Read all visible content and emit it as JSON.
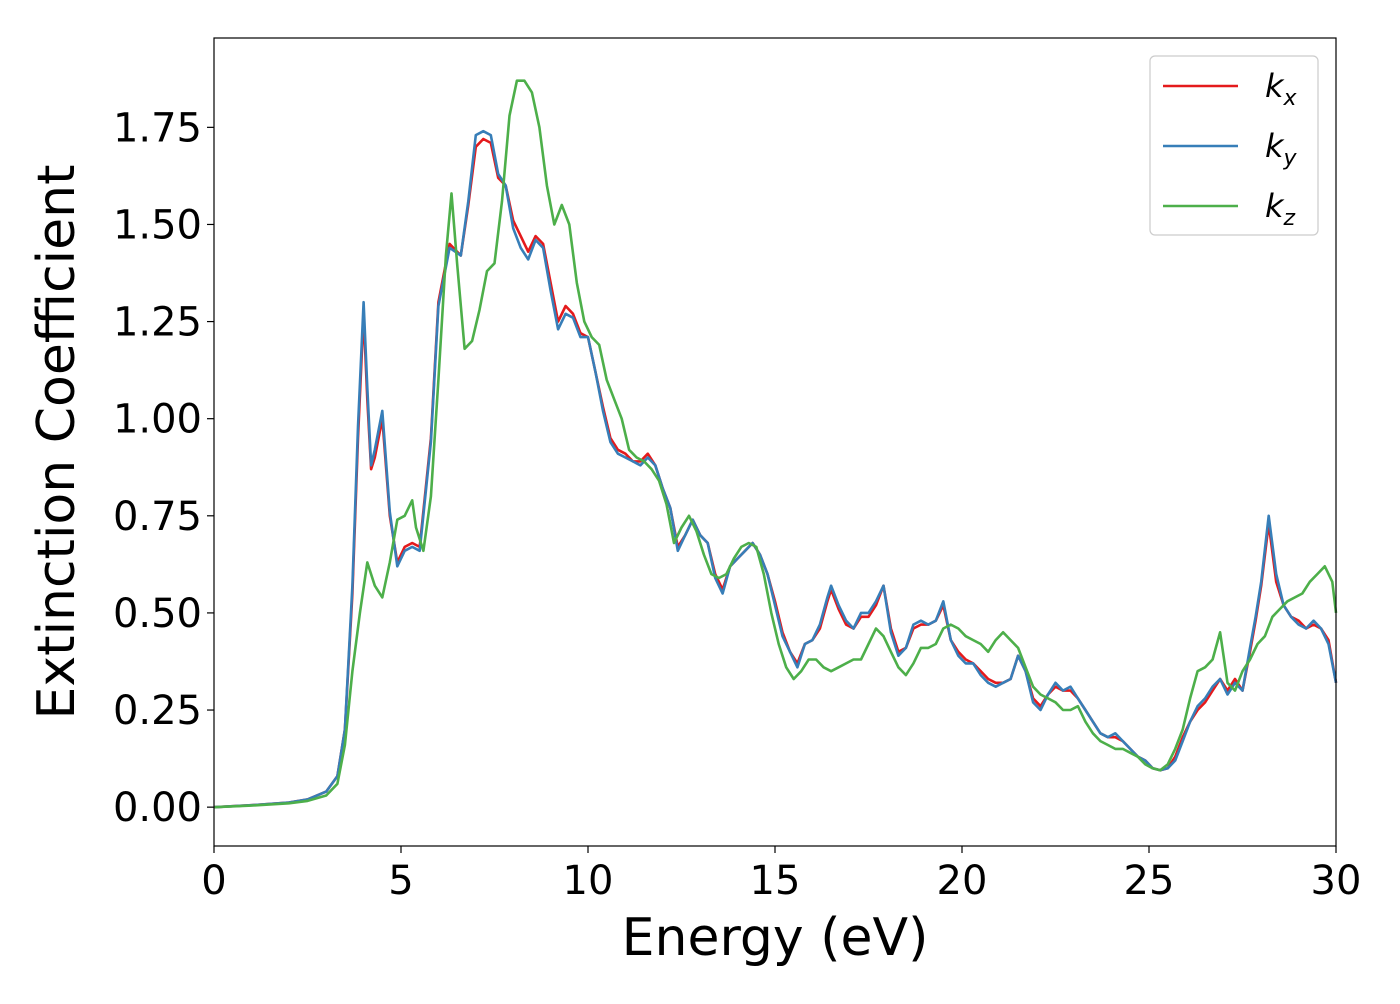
{
  "chart_data": {
    "type": "line",
    "xlabel": "Energy (eV)",
    "ylabel": "Extinction Coefficient",
    "xlim": [
      0,
      30
    ],
    "ylim": [
      -0.1,
      1.98
    ],
    "xticks": [
      0,
      5,
      10,
      15,
      20,
      25,
      30
    ],
    "xtick_labels": [
      "0",
      "5",
      "10",
      "15",
      "20",
      "25",
      "30"
    ],
    "yticks": [
      0,
      0.25,
      0.5,
      0.75,
      1.0,
      1.25,
      1.5,
      1.75
    ],
    "ytick_labels": [
      "0.00",
      "0.25",
      "0.50",
      "0.75",
      "1.00",
      "1.25",
      "1.50",
      "1.75"
    ],
    "grid": false,
    "legend_position": "top-right",
    "series": [
      {
        "name": "k_x",
        "label_base": "k",
        "label_sub": "x",
        "color": "#e41a1c",
        "x": [
          0,
          1,
          2,
          2.5,
          3,
          3.3,
          3.5,
          3.7,
          3.85,
          4.0,
          4.1,
          4.2,
          4.3,
          4.5,
          4.7,
          4.9,
          5.1,
          5.3,
          5.5,
          5.8,
          6.0,
          6.3,
          6.6,
          6.8,
          7.0,
          7.2,
          7.4,
          7.6,
          7.8,
          8.0,
          8.2,
          8.4,
          8.6,
          8.8,
          9.0,
          9.2,
          9.4,
          9.6,
          9.8,
          10.0,
          10.2,
          10.4,
          10.6,
          10.8,
          11.0,
          11.2,
          11.4,
          11.6,
          11.8,
          12.0,
          12.2,
          12.4,
          12.6,
          12.8,
          13.0,
          13.2,
          13.4,
          13.6,
          13.8,
          14.0,
          14.2,
          14.4,
          14.6,
          14.8,
          15.0,
          15.2,
          15.4,
          15.6,
          15.8,
          16.0,
          16.2,
          16.4,
          16.5,
          16.7,
          16.9,
          17.1,
          17.3,
          17.5,
          17.7,
          17.9,
          18.1,
          18.3,
          18.5,
          18.7,
          18.9,
          19.1,
          19.3,
          19.5,
          19.7,
          19.9,
          20.1,
          20.3,
          20.5,
          20.7,
          20.9,
          21.1,
          21.3,
          21.5,
          21.7,
          21.9,
          22.1,
          22.3,
          22.5,
          22.7,
          22.9,
          23.1,
          23.3,
          23.5,
          23.7,
          23.9,
          24.1,
          24.3,
          24.5,
          24.7,
          24.9,
          25.1,
          25.3,
          25.5,
          25.7,
          25.9,
          26.1,
          26.3,
          26.5,
          26.7,
          26.9,
          27.1,
          27.3,
          27.5,
          27.7,
          27.85,
          28.0,
          28.2,
          28.4,
          28.6,
          28.8,
          29.0,
          29.2,
          29.4,
          29.6,
          29.8,
          30.0
        ],
        "y": [
          0.0,
          0.005,
          0.012,
          0.02,
          0.04,
          0.08,
          0.2,
          0.55,
          0.95,
          1.27,
          1.05,
          0.87,
          0.9,
          1.0,
          0.75,
          0.63,
          0.67,
          0.68,
          0.67,
          0.95,
          1.3,
          1.45,
          1.42,
          1.55,
          1.7,
          1.72,
          1.71,
          1.62,
          1.6,
          1.51,
          1.47,
          1.43,
          1.47,
          1.45,
          1.35,
          1.25,
          1.29,
          1.27,
          1.22,
          1.21,
          1.12,
          1.03,
          0.95,
          0.92,
          0.91,
          0.89,
          0.89,
          0.91,
          0.88,
          0.82,
          0.77,
          0.67,
          0.7,
          0.74,
          0.7,
          0.68,
          0.6,
          0.56,
          0.62,
          0.64,
          0.66,
          0.68,
          0.65,
          0.6,
          0.53,
          0.45,
          0.4,
          0.37,
          0.42,
          0.43,
          0.46,
          0.53,
          0.56,
          0.51,
          0.47,
          0.46,
          0.49,
          0.49,
          0.52,
          0.57,
          0.46,
          0.4,
          0.41,
          0.46,
          0.47,
          0.47,
          0.48,
          0.52,
          0.43,
          0.4,
          0.38,
          0.37,
          0.35,
          0.33,
          0.32,
          0.32,
          0.33,
          0.39,
          0.35,
          0.28,
          0.26,
          0.29,
          0.31,
          0.3,
          0.3,
          0.28,
          0.25,
          0.22,
          0.19,
          0.18,
          0.18,
          0.17,
          0.15,
          0.13,
          0.12,
          0.1,
          0.095,
          0.1,
          0.13,
          0.18,
          0.22,
          0.25,
          0.27,
          0.3,
          0.33,
          0.3,
          0.33,
          0.3,
          0.4,
          0.48,
          0.57,
          0.73,
          0.58,
          0.52,
          0.49,
          0.48,
          0.46,
          0.47,
          0.46,
          0.43,
          0.32
        ]
      },
      {
        "name": "k_y",
        "label_base": "k",
        "label_sub": "y",
        "color": "#377eb8",
        "x": [
          0,
          1,
          2,
          2.5,
          3,
          3.3,
          3.5,
          3.7,
          3.85,
          4.0,
          4.1,
          4.2,
          4.3,
          4.5,
          4.7,
          4.9,
          5.1,
          5.3,
          5.5,
          5.8,
          6.0,
          6.3,
          6.6,
          6.8,
          7.0,
          7.2,
          7.4,
          7.6,
          7.8,
          8.0,
          8.2,
          8.4,
          8.6,
          8.8,
          9.0,
          9.2,
          9.4,
          9.6,
          9.8,
          10.0,
          10.2,
          10.4,
          10.6,
          10.8,
          11.0,
          11.2,
          11.4,
          11.6,
          11.8,
          12.0,
          12.2,
          12.4,
          12.6,
          12.8,
          13.0,
          13.2,
          13.4,
          13.6,
          13.8,
          14.0,
          14.2,
          14.4,
          14.6,
          14.8,
          15.0,
          15.2,
          15.4,
          15.6,
          15.8,
          16.0,
          16.2,
          16.4,
          16.5,
          16.7,
          16.9,
          17.1,
          17.3,
          17.5,
          17.7,
          17.9,
          18.1,
          18.3,
          18.5,
          18.7,
          18.9,
          19.1,
          19.3,
          19.5,
          19.7,
          19.9,
          20.1,
          20.3,
          20.5,
          20.7,
          20.9,
          21.1,
          21.3,
          21.5,
          21.7,
          21.9,
          22.1,
          22.3,
          22.5,
          22.7,
          22.9,
          23.1,
          23.3,
          23.5,
          23.7,
          23.9,
          24.1,
          24.3,
          24.5,
          24.7,
          24.9,
          25.1,
          25.3,
          25.5,
          25.7,
          25.9,
          26.1,
          26.3,
          26.5,
          26.7,
          26.9,
          27.1,
          27.3,
          27.5,
          27.7,
          27.85,
          28.0,
          28.2,
          28.4,
          28.6,
          28.8,
          29.0,
          29.2,
          29.4,
          29.6,
          29.8,
          30.0
        ],
        "y": [
          0.0,
          0.005,
          0.012,
          0.02,
          0.04,
          0.08,
          0.2,
          0.57,
          0.98,
          1.3,
          1.08,
          0.88,
          0.92,
          1.02,
          0.76,
          0.62,
          0.66,
          0.67,
          0.66,
          0.94,
          1.29,
          1.44,
          1.42,
          1.56,
          1.73,
          1.74,
          1.73,
          1.63,
          1.6,
          1.49,
          1.44,
          1.41,
          1.46,
          1.44,
          1.33,
          1.23,
          1.27,
          1.26,
          1.21,
          1.21,
          1.12,
          1.02,
          0.94,
          0.91,
          0.9,
          0.89,
          0.88,
          0.9,
          0.88,
          0.82,
          0.77,
          0.66,
          0.7,
          0.74,
          0.7,
          0.68,
          0.59,
          0.55,
          0.62,
          0.64,
          0.66,
          0.68,
          0.65,
          0.6,
          0.52,
          0.44,
          0.4,
          0.36,
          0.42,
          0.43,
          0.47,
          0.54,
          0.57,
          0.52,
          0.48,
          0.46,
          0.5,
          0.5,
          0.53,
          0.57,
          0.45,
          0.39,
          0.41,
          0.47,
          0.48,
          0.47,
          0.48,
          0.53,
          0.43,
          0.39,
          0.37,
          0.37,
          0.34,
          0.32,
          0.31,
          0.32,
          0.33,
          0.39,
          0.35,
          0.27,
          0.25,
          0.29,
          0.32,
          0.3,
          0.31,
          0.28,
          0.25,
          0.22,
          0.19,
          0.18,
          0.19,
          0.17,
          0.15,
          0.13,
          0.12,
          0.1,
          0.095,
          0.1,
          0.12,
          0.17,
          0.22,
          0.26,
          0.28,
          0.31,
          0.33,
          0.29,
          0.32,
          0.3,
          0.41,
          0.49,
          0.58,
          0.75,
          0.6,
          0.52,
          0.49,
          0.47,
          0.46,
          0.48,
          0.46,
          0.42,
          0.32
        ]
      },
      {
        "name": "k_z",
        "label_base": "k",
        "label_sub": "z",
        "color": "#4daf4a",
        "x": [
          0,
          1,
          2,
          2.5,
          3,
          3.3,
          3.5,
          3.7,
          3.9,
          4.1,
          4.3,
          4.5,
          4.7,
          4.9,
          5.1,
          5.3,
          5.4,
          5.6,
          5.8,
          6.0,
          6.2,
          6.35,
          6.5,
          6.7,
          6.9,
          7.1,
          7.3,
          7.5,
          7.7,
          7.9,
          8.1,
          8.3,
          8.5,
          8.7,
          8.9,
          9.1,
          9.3,
          9.5,
          9.7,
          9.9,
          10.1,
          10.3,
          10.5,
          10.7,
          10.9,
          11.1,
          11.3,
          11.5,
          11.7,
          11.9,
          12.1,
          12.3,
          12.5,
          12.7,
          12.9,
          13.1,
          13.3,
          13.5,
          13.7,
          13.9,
          14.1,
          14.3,
          14.5,
          14.7,
          14.9,
          15.1,
          15.3,
          15.5,
          15.7,
          15.9,
          16.1,
          16.3,
          16.5,
          16.7,
          16.9,
          17.1,
          17.3,
          17.5,
          17.7,
          17.9,
          18.1,
          18.3,
          18.5,
          18.7,
          18.9,
          19.1,
          19.3,
          19.5,
          19.7,
          19.9,
          20.1,
          20.3,
          20.5,
          20.7,
          20.9,
          21.1,
          21.3,
          21.5,
          21.7,
          21.9,
          22.1,
          22.3,
          22.5,
          22.7,
          22.9,
          23.1,
          23.3,
          23.5,
          23.7,
          23.9,
          24.1,
          24.3,
          24.5,
          24.7,
          24.9,
          25.1,
          25.3,
          25.5,
          25.7,
          25.9,
          26.1,
          26.3,
          26.5,
          26.7,
          26.9,
          27.1,
          27.3,
          27.5,
          27.7,
          27.9,
          28.1,
          28.3,
          28.5,
          28.7,
          28.9,
          29.1,
          29.3,
          29.5,
          29.7,
          29.9,
          30.0
        ],
        "y": [
          0.0,
          0.004,
          0.01,
          0.016,
          0.03,
          0.06,
          0.16,
          0.35,
          0.5,
          0.63,
          0.57,
          0.54,
          0.63,
          0.74,
          0.75,
          0.79,
          0.72,
          0.66,
          0.8,
          1.1,
          1.42,
          1.58,
          1.4,
          1.18,
          1.2,
          1.28,
          1.38,
          1.4,
          1.56,
          1.78,
          1.87,
          1.87,
          1.84,
          1.75,
          1.6,
          1.5,
          1.55,
          1.5,
          1.35,
          1.25,
          1.21,
          1.19,
          1.1,
          1.05,
          1.0,
          0.92,
          0.9,
          0.89,
          0.87,
          0.84,
          0.78,
          0.68,
          0.72,
          0.75,
          0.71,
          0.65,
          0.6,
          0.59,
          0.6,
          0.64,
          0.67,
          0.68,
          0.67,
          0.6,
          0.5,
          0.42,
          0.36,
          0.33,
          0.35,
          0.38,
          0.38,
          0.36,
          0.35,
          0.36,
          0.37,
          0.38,
          0.38,
          0.42,
          0.46,
          0.44,
          0.4,
          0.36,
          0.34,
          0.37,
          0.41,
          0.41,
          0.42,
          0.46,
          0.47,
          0.46,
          0.44,
          0.43,
          0.42,
          0.4,
          0.43,
          0.45,
          0.43,
          0.41,
          0.36,
          0.31,
          0.29,
          0.28,
          0.27,
          0.25,
          0.25,
          0.26,
          0.22,
          0.19,
          0.17,
          0.16,
          0.15,
          0.15,
          0.14,
          0.13,
          0.11,
          0.1,
          0.095,
          0.11,
          0.15,
          0.2,
          0.28,
          0.35,
          0.36,
          0.38,
          0.45,
          0.32,
          0.3,
          0.35,
          0.38,
          0.42,
          0.44,
          0.49,
          0.51,
          0.53,
          0.54,
          0.55,
          0.58,
          0.6,
          0.62,
          0.58,
          0.5
        ]
      }
    ]
  }
}
